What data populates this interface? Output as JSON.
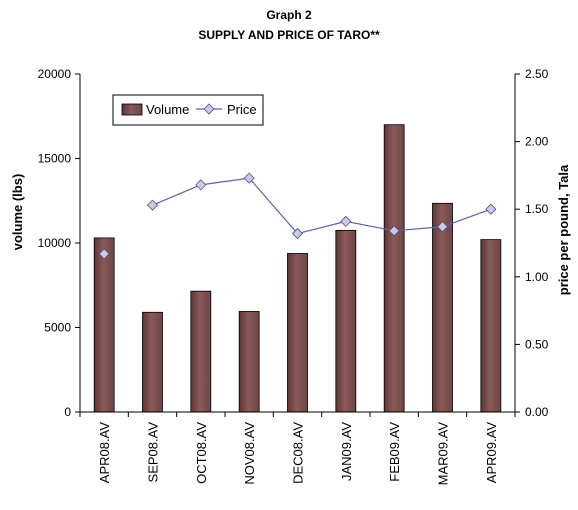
{
  "chart_data": {
    "type": "bar",
    "title": "Graph 2",
    "subtitle": "SUPPLY AND PRICE OF TARO**",
    "categories": [
      "APR08.AV",
      "SEP08.AV",
      "OCT08.AV",
      "NOV08.AV",
      "DEC08.AV",
      "JAN09.AV",
      "FEB09.AV",
      "MAR09.AV",
      "APR09.AV"
    ],
    "series": [
      {
        "name": "Volume",
        "type": "bar",
        "axis": "left",
        "color": "#8b5a5a",
        "values": [
          10300,
          5900,
          7150,
          5950,
          9380,
          10750,
          17000,
          12350,
          10200
        ]
      },
      {
        "name": "Price",
        "type": "line",
        "axis": "right",
        "color": "#5a62a8",
        "marker": "diamond",
        "values": [
          1.17,
          1.53,
          1.68,
          1.73,
          1.32,
          1.41,
          1.34,
          1.37,
          1.5
        ]
      }
    ],
    "ylabel": "volume (lbs)",
    "ylim": [
      0,
      20000
    ],
    "yticks": [
      "0",
      "5000",
      "10000",
      "15000",
      "20000"
    ],
    "y2label": "price per pound, Tala",
    "y2lim": [
      0,
      2.5
    ],
    "y2ticks": [
      "0.00",
      "0.50",
      "1.00",
      "1.50",
      "2.00",
      "2.50"
    ],
    "grid": false,
    "legend_position": "top-left"
  }
}
